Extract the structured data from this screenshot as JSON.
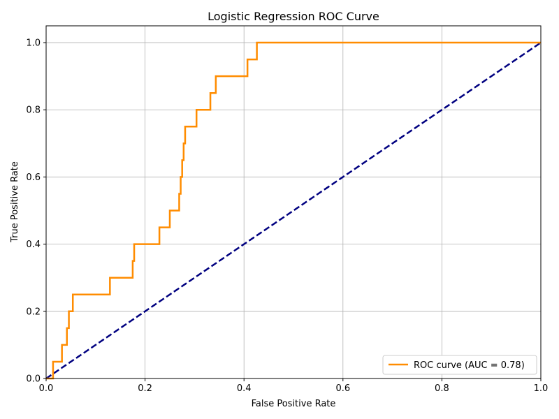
{
  "chart_data": {
    "type": "line",
    "title": "Logistic Regression ROC Curve",
    "xlabel": "False Positive Rate",
    "ylabel": "True Positive Rate",
    "xlim": [
      0.0,
      1.0
    ],
    "ylim": [
      0.0,
      1.05
    ],
    "xticks": [
      "0.0",
      "0.2",
      "0.4",
      "0.6",
      "0.8",
      "1.0"
    ],
    "yticks": [
      "0.0",
      "0.2",
      "0.4",
      "0.6",
      "0.8",
      "1.0"
    ],
    "grid": true,
    "legend_position": "lower-right",
    "series": [
      {
        "name": "ROC curve (AUC = 0.78)",
        "color": "#ff8c00",
        "style": "solid",
        "x": [
          0.0,
          0.014,
          0.014,
          0.032,
          0.032,
          0.042,
          0.042,
          0.046,
          0.046,
          0.054,
          0.054,
          0.129,
          0.129,
          0.175,
          0.175,
          0.178,
          0.178,
          0.229,
          0.229,
          0.25,
          0.25,
          0.269,
          0.269,
          0.272,
          0.272,
          0.275,
          0.275,
          0.278,
          0.278,
          0.281,
          0.281,
          0.304,
          0.304,
          0.332,
          0.332,
          0.343,
          0.343,
          0.407,
          0.407,
          0.426,
          0.426,
          1.0
        ],
        "y": [
          0.0,
          0.0,
          0.05,
          0.05,
          0.1,
          0.1,
          0.15,
          0.15,
          0.2,
          0.2,
          0.25,
          0.25,
          0.3,
          0.3,
          0.35,
          0.35,
          0.4,
          0.4,
          0.45,
          0.45,
          0.5,
          0.5,
          0.55,
          0.55,
          0.6,
          0.6,
          0.65,
          0.65,
          0.7,
          0.7,
          0.75,
          0.75,
          0.8,
          0.8,
          0.85,
          0.85,
          0.9,
          0.9,
          0.95,
          0.95,
          1.0,
          1.0
        ]
      },
      {
        "name": "",
        "color": "#000080",
        "style": "dashed",
        "x": [
          0.0,
          1.0
        ],
        "y": [
          0.0,
          1.0
        ]
      }
    ]
  }
}
